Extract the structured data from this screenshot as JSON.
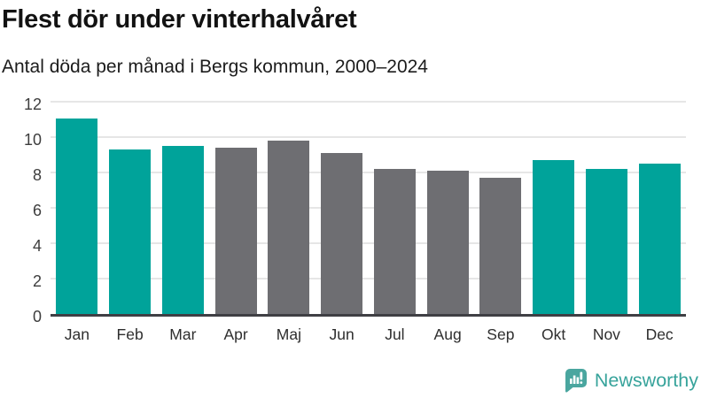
{
  "chart_data": {
    "type": "bar",
    "title": "Flest dör under vinterhalvåret",
    "subtitle": "Antal döda per månad i Bergs kommun, 2000–2024",
    "categories": [
      "Jan",
      "Feb",
      "Mar",
      "Apr",
      "Maj",
      "Jun",
      "Jul",
      "Aug",
      "Sep",
      "Okt",
      "Nov",
      "Dec"
    ],
    "values": [
      11.2,
      9.4,
      9.6,
      9.5,
      9.9,
      9.2,
      8.3,
      8.2,
      7.8,
      8.8,
      8.3,
      8.6
    ],
    "highlighted_categories": [
      "Jan",
      "Feb",
      "Mar",
      "Okt",
      "Nov",
      "Dec"
    ],
    "colors": {
      "highlight": "#00a39a",
      "default": "#6e6e72",
      "gridline": "#e6e6e6",
      "axis": "#3f3f44"
    },
    "xlabel": "",
    "ylabel": "",
    "ylim": [
      0,
      12
    ],
    "yticks": [
      0,
      2,
      4,
      6,
      8,
      10,
      12
    ],
    "grid": "horizontal",
    "legend": "none"
  },
  "branding": {
    "name": "Newsworthy",
    "color": "#37a39b",
    "icon": "newsworthy-logo-icon",
    "icon_color": "#4aa69f"
  }
}
